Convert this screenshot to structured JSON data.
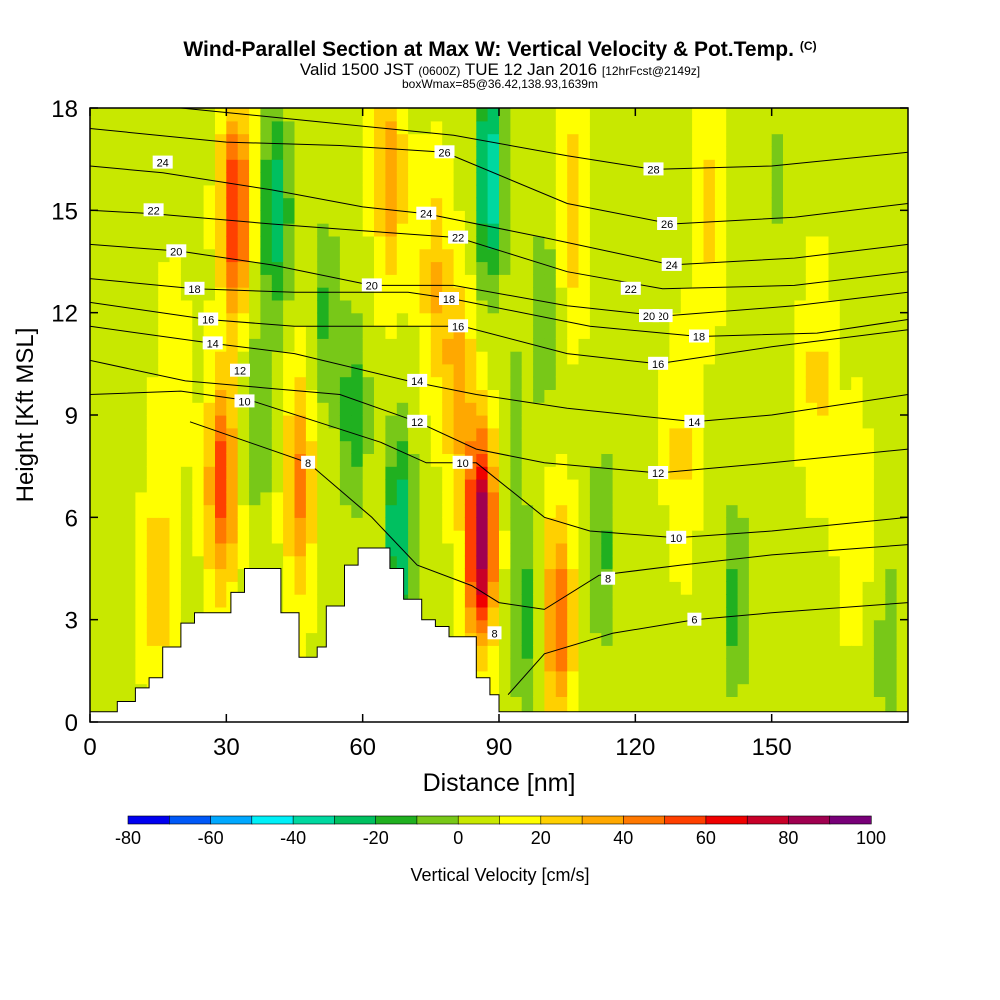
{
  "header": {
    "title": "Wind-Parallel Section at Max W: Vertical Velocity & Pot.Temp.",
    "title_mark": "(C)",
    "valid_prefix": "Valid 1500 JST",
    "valid_utc": "(0600Z)",
    "valid_date": "TUE 12 Jan 2016",
    "forecast_tag": "[12hrFcst@2149z]",
    "box_info": "boxWmax=85@36.42,138.93,1639m"
  },
  "chart_data": {
    "type": "heatmap",
    "xlabel": "Distance [nm]",
    "ylabel": "Height [Kft MSL]",
    "xlim": [
      0,
      180
    ],
    "ylim": [
      0,
      18
    ],
    "x_ticks": [
      0,
      30,
      60,
      90,
      120,
      150
    ],
    "y_ticks": [
      0,
      3,
      6,
      9,
      12,
      15,
      18
    ],
    "colorbar": {
      "label": "Vertical Velocity [cm/s]",
      "tick_labels": [
        "-80",
        "-60",
        "-40",
        "-20",
        "0",
        "20",
        "40",
        "60",
        "80",
        "100"
      ],
      "colors": [
        "#0000f0",
        "#0058f8",
        "#00a8ff",
        "#00f0f8",
        "#00d8a0",
        "#00c060",
        "#20b020",
        "#78c818",
        "#c8e800",
        "#ffff00",
        "#ffd000",
        "#ffa800",
        "#ff7800",
        "#ff4000",
        "#f00000",
        "#c80028",
        "#a00050",
        "#780078"
      ]
    },
    "terrain": [
      [
        0,
        0.3
      ],
      [
        6,
        0.3
      ],
      [
        6,
        0.6
      ],
      [
        10,
        0.6
      ],
      [
        10,
        1.0
      ],
      [
        13,
        1.0
      ],
      [
        13,
        1.3
      ],
      [
        16,
        1.3
      ],
      [
        16,
        2.2
      ],
      [
        20,
        2.2
      ],
      [
        20,
        2.9
      ],
      [
        23,
        2.9
      ],
      [
        23,
        3.2
      ],
      [
        31,
        3.2
      ],
      [
        31,
        3.8
      ],
      [
        34,
        3.8
      ],
      [
        34,
        4.5
      ],
      [
        42,
        4.5
      ],
      [
        42,
        3.2
      ],
      [
        46,
        3.2
      ],
      [
        46,
        1.9
      ],
      [
        50,
        1.9
      ],
      [
        50,
        2.2
      ],
      [
        52,
        2.2
      ],
      [
        52,
        3.4
      ],
      [
        56,
        3.4
      ],
      [
        56,
        4.6
      ],
      [
        59,
        4.6
      ],
      [
        59,
        5.1
      ],
      [
        66,
        5.1
      ],
      [
        66,
        4.5
      ],
      [
        69,
        4.5
      ],
      [
        69,
        3.6
      ],
      [
        73,
        3.6
      ],
      [
        73,
        3.0
      ],
      [
        76,
        3.0
      ],
      [
        76,
        2.8
      ],
      [
        79,
        2.8
      ],
      [
        79,
        2.5
      ],
      [
        85,
        2.5
      ],
      [
        85,
        1.3
      ],
      [
        88,
        1.3
      ],
      [
        88,
        0.8
      ],
      [
        90,
        0.8
      ],
      [
        90,
        0.3
      ],
      [
        180,
        0.3
      ]
    ],
    "w_centers": [
      {
        "x": 32,
        "y": 15,
        "w": 55
      },
      {
        "x": 29,
        "y": 7,
        "w": 48
      },
      {
        "x": 46,
        "y": 7,
        "w": 35
      },
      {
        "x": 41,
        "y": 15,
        "w": -38
      },
      {
        "x": 52,
        "y": 12,
        "w": -20
      },
      {
        "x": 66,
        "y": 16,
        "w": 30
      },
      {
        "x": 76,
        "y": 13,
        "w": 22
      },
      {
        "x": 86,
        "y": 5.5,
        "w": 82
      },
      {
        "x": 88,
        "y": 16,
        "w": -48
      },
      {
        "x": 81,
        "y": 10,
        "w": 28
      },
      {
        "x": 68,
        "y": 5.5,
        "w": -40
      },
      {
        "x": 96,
        "y": 3,
        "w": -22
      },
      {
        "x": 103,
        "y": 3,
        "w": 42
      },
      {
        "x": 100,
        "y": 12,
        "w": -18
      },
      {
        "x": 106,
        "y": 15,
        "w": 20
      },
      {
        "x": 113,
        "y": 5,
        "w": -20
      },
      {
        "x": 130,
        "y": 8,
        "w": 15
      },
      {
        "x": 136,
        "y": 15,
        "w": 15
      },
      {
        "x": 142,
        "y": 3.5,
        "w": -22
      },
      {
        "x": 15,
        "y": 4,
        "w": 20
      },
      {
        "x": 18,
        "y": 10,
        "w": 10
      },
      {
        "x": 160,
        "y": 10,
        "w": 15
      },
      {
        "x": 168,
        "y": 6,
        "w": 12
      },
      {
        "x": 176,
        "y": 2,
        "w": -15
      },
      {
        "x": 151,
        "y": 16,
        "w": -10
      },
      {
        "x": 8,
        "y": 14,
        "w": -8
      },
      {
        "x": 124,
        "y": 2,
        "w": -8
      },
      {
        "x": 37,
        "y": 9,
        "w": -18
      },
      {
        "x": 58,
        "y": 9,
        "w": -25
      },
      {
        "x": 93,
        "y": 9,
        "w": -12
      }
    ],
    "isentropes": [
      {
        "value": "6",
        "label_at": [
          133,
          3.0
        ],
        "points": [
          [
            92,
            0.8
          ],
          [
            100,
            2.0
          ],
          [
            115,
            2.6
          ],
          [
            133,
            3.0
          ],
          [
            150,
            3.2
          ],
          [
            180,
            3.5
          ]
        ]
      },
      {
        "value": "8",
        "label_at": [
          48,
          7.6
        ],
        "points": [
          [
            22,
            8.8
          ],
          [
            35,
            8.2
          ],
          [
            48,
            7.6
          ],
          [
            62,
            6.0
          ],
          [
            72,
            4.6
          ],
          [
            84,
            4.0
          ],
          [
            90,
            3.5
          ],
          [
            100,
            3.3
          ],
          [
            112,
            4.3
          ],
          [
            130,
            4.6
          ],
          [
            150,
            4.9
          ],
          [
            180,
            5.2
          ]
        ]
      },
      {
        "value": "10",
        "label_at": [
          129,
          5.4
        ],
        "points": [
          [
            0,
            9.6
          ],
          [
            20,
            9.7
          ],
          [
            36,
            9.4
          ],
          [
            50,
            8.8
          ],
          [
            64,
            8.2
          ],
          [
            74,
            7.6
          ],
          [
            85,
            7.6
          ],
          [
            100,
            6.0
          ],
          [
            110,
            5.6
          ],
          [
            129,
            5.4
          ],
          [
            150,
            5.6
          ],
          [
            180,
            6.0
          ]
        ]
      },
      {
        "value": "12",
        "label_at": [
          125,
          7.3
        ],
        "points": [
          [
            0,
            10.6
          ],
          [
            21,
            10.0
          ],
          [
            38,
            9.8
          ],
          [
            55,
            9.6
          ],
          [
            72,
            8.8
          ],
          [
            85,
            8.0
          ],
          [
            100,
            7.6
          ],
          [
            125,
            7.3
          ],
          [
            150,
            7.6
          ],
          [
            180,
            8.0
          ]
        ]
      },
      {
        "value": "14",
        "label_at": [
          133,
          8.8
        ],
        "points": [
          [
            0,
            11.6
          ],
          [
            27,
            11.1
          ],
          [
            45,
            10.8
          ],
          [
            70,
            10.0
          ],
          [
            85,
            9.6
          ],
          [
            105,
            9.2
          ],
          [
            133,
            8.8
          ],
          [
            150,
            9.0
          ],
          [
            180,
            9.6
          ]
        ]
      },
      {
        "value": "16",
        "label_at": [
          125,
          10.5
        ],
        "points": [
          [
            0,
            12.3
          ],
          [
            26,
            11.8
          ],
          [
            45,
            11.6
          ],
          [
            70,
            11.6
          ],
          [
            82,
            11.6
          ],
          [
            105,
            10.8
          ],
          [
            125,
            10.5
          ],
          [
            150,
            11.0
          ],
          [
            180,
            11.5
          ]
        ]
      },
      {
        "value": "18",
        "label_at": [
          134,
          11.3
        ],
        "points": [
          [
            0,
            13.0
          ],
          [
            23,
            12.7
          ],
          [
            45,
            12.6
          ],
          [
            70,
            12.6
          ],
          [
            80,
            12.4
          ],
          [
            110,
            11.6
          ],
          [
            134,
            11.3
          ],
          [
            160,
            11.4
          ],
          [
            180,
            11.8
          ]
        ]
      },
      {
        "value": "20",
        "label_at": [
          126,
          11.9
        ],
        "points": [
          [
            0,
            14.0
          ],
          [
            20,
            13.8
          ],
          [
            40,
            13.4
          ],
          [
            62,
            12.8
          ],
          [
            80,
            12.8
          ],
          [
            105,
            12.2
          ],
          [
            126,
            11.9
          ],
          [
            155,
            12.2
          ],
          [
            180,
            12.6
          ]
        ]
      },
      {
        "value": "22",
        "label_at": [
          81,
          14.2
        ],
        "points": [
          [
            0,
            15.0
          ],
          [
            14,
            14.9
          ],
          [
            40,
            14.6
          ],
          [
            60,
            14.4
          ],
          [
            81,
            14.2
          ],
          [
            105,
            13.2
          ],
          [
            126,
            12.7
          ],
          [
            155,
            12.8
          ],
          [
            180,
            13.2
          ]
        ]
      },
      {
        "value": "24",
        "label_at": [
          74,
          14.9
        ],
        "points": [
          [
            0,
            16.3
          ],
          [
            16,
            16.1
          ],
          [
            40,
            15.6
          ],
          [
            60,
            15.1
          ],
          [
            74,
            14.9
          ],
          [
            100,
            14.2
          ],
          [
            128,
            13.4
          ],
          [
            155,
            13.6
          ],
          [
            180,
            14.0
          ]
        ]
      },
      {
        "value": "26",
        "label_at": [
          78,
          16.7
        ],
        "points": [
          [
            0,
            17.4
          ],
          [
            30,
            17.0
          ],
          [
            55,
            16.9
          ],
          [
            78,
            16.7
          ],
          [
            105,
            15.2
          ],
          [
            128,
            14.6
          ],
          [
            155,
            14.8
          ],
          [
            180,
            15.2
          ]
        ]
      },
      {
        "value": "28",
        "label_at": [
          124,
          16.2
        ],
        "points": [
          [
            20,
            18.0
          ],
          [
            50,
            17.6
          ],
          [
            80,
            17.2
          ],
          [
            105,
            16.6
          ],
          [
            124,
            16.2
          ],
          [
            150,
            16.3
          ],
          [
            180,
            16.7
          ]
        ]
      }
    ],
    "extra_label_positions": [
      {
        "value": "24",
        "at": [
          16,
          16.4
        ]
      },
      {
        "value": "22",
        "at": [
          14,
          15.0
        ]
      },
      {
        "value": "20",
        "at": [
          19,
          13.8
        ]
      },
      {
        "value": "18",
        "at": [
          23,
          12.7
        ]
      },
      {
        "value": "16",
        "at": [
          26,
          11.8
        ]
      },
      {
        "value": "14",
        "at": [
          27,
          11.1
        ]
      },
      {
        "value": "12",
        "at": [
          33,
          10.3
        ]
      },
      {
        "value": "10",
        "at": [
          34,
          9.4
        ]
      },
      {
        "value": "20",
        "at": [
          62,
          12.8
        ]
      },
      {
        "value": "18",
        "at": [
          79,
          12.4
        ]
      },
      {
        "value": "16",
        "at": [
          81,
          11.6
        ]
      },
      {
        "value": "14",
        "at": [
          72,
          10.0
        ]
      },
      {
        "value": "12",
        "at": [
          72,
          8.8
        ]
      },
      {
        "value": "10",
        "at": [
          82,
          7.6
        ]
      },
      {
        "value": "8",
        "at": [
          89,
          2.6
        ]
      },
      {
        "value": "8",
        "at": [
          114,
          4.2
        ]
      },
      {
        "value": "26",
        "at": [
          127,
          14.6
        ]
      },
      {
        "value": "24",
        "at": [
          128,
          13.4
        ]
      },
      {
        "value": "22",
        "at": [
          119,
          12.7
        ]
      },
      {
        "value": "20",
        "at": [
          123,
          11.9
        ]
      }
    ]
  }
}
